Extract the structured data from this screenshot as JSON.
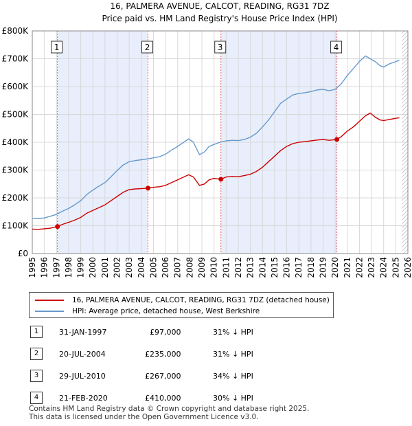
{
  "chart_data": {
    "type": "line",
    "title": "16, PALMERA AVENUE, CALCOT, READING, RG31 7DZ",
    "subtitle": "Price paid vs. HM Land Registry's House Price Index (HPI)",
    "xlim": [
      1995,
      2026
    ],
    "ylim": [
      0,
      800000
    ],
    "x_ticks": [
      "1995",
      "1996",
      "1997",
      "1998",
      "1999",
      "2000",
      "2001",
      "2002",
      "2003",
      "2004",
      "2005",
      "2006",
      "2007",
      "2008",
      "2009",
      "2010",
      "2011",
      "2012",
      "2013",
      "2014",
      "2015",
      "2016",
      "2017",
      "2018",
      "2019",
      "2020",
      "2021",
      "2022",
      "2023",
      "2024",
      "2025",
      "2026"
    ],
    "y_ticks": [
      {
        "value": 0,
        "label": "£0"
      },
      {
        "value": 100000,
        "label": "£100K"
      },
      {
        "value": 200000,
        "label": "£200K"
      },
      {
        "value": 300000,
        "label": "£300K"
      },
      {
        "value": 400000,
        "label": "£400K"
      },
      {
        "value": 500000,
        "label": "£500K"
      },
      {
        "value": 600000,
        "label": "£600K"
      },
      {
        "value": 700000,
        "label": "£700K"
      },
      {
        "value": 800000,
        "label": "£800K"
      }
    ],
    "shaded_periods": [
      [
        1997.08,
        2004.55
      ],
      [
        2010.57,
        2020.14
      ]
    ],
    "hatched_from": 2025.5,
    "series": [
      {
        "name": "16, PALMERA AVENUE, CALCOT, READING, RG31 7DZ (detached house)",
        "color": "#cc0000",
        "x": [
          1995.0,
          1995.5,
          1996.0,
          1996.5,
          1997.08,
          1997.5,
          1998.0,
          1998.5,
          1999.0,
          1999.5,
          2000.0,
          2000.5,
          2001.0,
          2001.5,
          2002.0,
          2002.5,
          2003.0,
          2003.5,
          2004.0,
          2004.55,
          2005.0,
          2005.5,
          2006.0,
          2006.5,
          2007.0,
          2007.5,
          2007.9,
          2008.3,
          2008.8,
          2009.2,
          2009.6,
          2010.0,
          2010.57,
          2011.0,
          2011.5,
          2012.0,
          2012.5,
          2013.0,
          2013.5,
          2014.0,
          2014.5,
          2015.0,
          2015.5,
          2016.0,
          2016.5,
          2017.0,
          2017.5,
          2018.0,
          2018.5,
          2019.0,
          2019.5,
          2020.14,
          2020.5,
          2021.0,
          2021.5,
          2022.0,
          2022.5,
          2022.9,
          2023.3,
          2023.7,
          2024.0,
          2024.5,
          2025.0,
          2025.3
        ],
        "values": [
          88000,
          87000,
          89000,
          91000,
          97000,
          105000,
          112000,
          120000,
          130000,
          145000,
          155000,
          165000,
          175000,
          190000,
          205000,
          220000,
          230000,
          232000,
          233000,
          235000,
          238000,
          240000,
          245000,
          255000,
          265000,
          275000,
          283000,
          275000,
          245000,
          250000,
          265000,
          270000,
          267000,
          275000,
          277000,
          276000,
          280000,
          285000,
          295000,
          310000,
          330000,
          350000,
          370000,
          385000,
          395000,
          400000,
          402000,
          405000,
          408000,
          410000,
          407000,
          410000,
          420000,
          440000,
          455000,
          475000,
          495000,
          505000,
          490000,
          480000,
          478000,
          482000,
          486000,
          488000
        ]
      },
      {
        "name": "HPI: Average price, detached house, West Berkshire",
        "color": "#6699cc",
        "x": [
          1995.0,
          1995.5,
          1996.0,
          1996.5,
          1997.0,
          1997.5,
          1998.0,
          1998.5,
          1999.0,
          1999.5,
          2000.0,
          2000.5,
          2001.0,
          2001.5,
          2002.0,
          2002.5,
          2003.0,
          2003.5,
          2004.0,
          2004.5,
          2005.0,
          2005.5,
          2006.0,
          2006.5,
          2007.0,
          2007.5,
          2007.9,
          2008.3,
          2008.8,
          2009.2,
          2009.6,
          2010.0,
          2010.5,
          2011.0,
          2011.5,
          2012.0,
          2012.5,
          2013.0,
          2013.5,
          2014.0,
          2014.5,
          2015.0,
          2015.5,
          2016.0,
          2016.5,
          2017.0,
          2017.5,
          2018.0,
          2018.5,
          2019.0,
          2019.5,
          2020.0,
          2020.5,
          2021.0,
          2021.5,
          2022.0,
          2022.5,
          2022.9,
          2023.3,
          2023.7,
          2024.0,
          2024.5,
          2025.0,
          2025.3
        ],
        "values": [
          127000,
          126000,
          128000,
          134000,
          141000,
          152000,
          162000,
          175000,
          190000,
          212000,
          228000,
          242000,
          255000,
          276000,
          298000,
          318000,
          330000,
          334000,
          337000,
          340000,
          344000,
          348000,
          357000,
          372000,
          385000,
          400000,
          412000,
          400000,
          355000,
          365000,
          385000,
          392000,
          400000,
          405000,
          407000,
          406000,
          410000,
          418000,
          432000,
          455000,
          480000,
          510000,
          540000,
          555000,
          570000,
          575000,
          578000,
          582000,
          588000,
          590000,
          585000,
          590000,
          610000,
          640000,
          665000,
          690000,
          710000,
          700000,
          690000,
          675000,
          670000,
          682000,
          690000,
          694000
        ]
      }
    ],
    "sales": [
      {
        "n": "1",
        "year": 1997.08,
        "value": 97000
      },
      {
        "n": "2",
        "year": 2004.55,
        "value": 235000
      },
      {
        "n": "3",
        "year": 2010.57,
        "value": 267000
      },
      {
        "n": "4",
        "year": 2020.14,
        "value": 410000
      }
    ]
  },
  "legend": {
    "property_label": "16, PALMERA AVENUE, CALCOT, READING, RG31 7DZ (detached house)",
    "hpi_label": "HPI: Average price, detached house, West Berkshire",
    "property_color": "#cc0000",
    "hpi_color": "#6699cc"
  },
  "sales_table": [
    {
      "n": "1",
      "date": "31-JAN-1997",
      "price": "£97,000",
      "diff": "31% ↓ HPI"
    },
    {
      "n": "2",
      "date": "20-JUL-2004",
      "price": "£235,000",
      "diff": "31% ↓ HPI"
    },
    {
      "n": "3",
      "date": "29-JUL-2010",
      "price": "£267,000",
      "diff": "34% ↓ HPI"
    },
    {
      "n": "4",
      "date": "21-FEB-2020",
      "price": "£410,000",
      "diff": "30% ↓ HPI"
    }
  ],
  "footer": {
    "line1": "Contains HM Land Registry data © Crown copyright and database right 2025.",
    "line2": "This data is licensed under the Open Government Licence v3.0."
  }
}
